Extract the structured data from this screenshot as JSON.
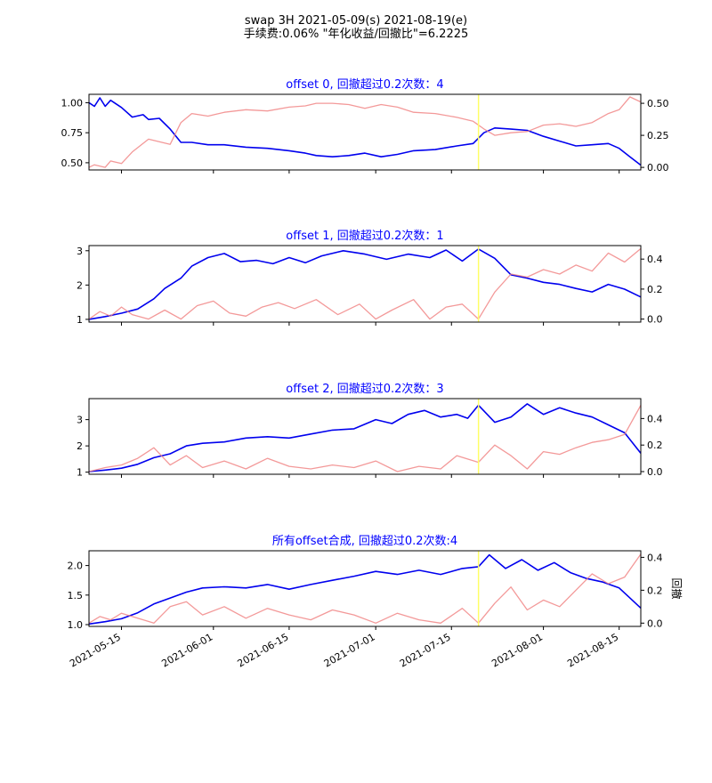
{
  "figure": {
    "title_line1": "swap 3H 2021-05-09(s) 2021-08-19(e)",
    "title_line2": "手续费:0.06% \"年化收益/回撤比\"=6.2225"
  },
  "colors": {
    "equity": "#0000ee",
    "drawdown": "#f08080",
    "marker": "#ffff66",
    "title": "#0000ff"
  },
  "chart_data": [
    {
      "type": "line",
      "title": "offset 0, 回撤超过0.2次数：4",
      "xlim": [
        "2021-05-09",
        "2021-08-19"
      ],
      "ylim": [
        0.44,
        1.07
      ],
      "yticks": [
        0.5,
        0.75,
        1.0
      ],
      "ytick_labels": [
        "0.50",
        "0.75",
        "1.00"
      ],
      "y2lim": [
        -0.02,
        0.57
      ],
      "y2ticks": [
        0.0,
        0.25,
        0.5
      ],
      "y2tick_labels": [
        "0.00",
        "0.25",
        "0.50"
      ],
      "y2label": "",
      "marker_x": "2021-07-20",
      "series": [
        {
          "role": "equity",
          "axis": "left",
          "x": [
            "2021-05-09",
            "2021-05-10",
            "2021-05-11",
            "2021-05-12",
            "2021-05-13",
            "2021-05-15",
            "2021-05-17",
            "2021-05-19",
            "2021-05-20",
            "2021-05-22",
            "2021-05-24",
            "2021-05-26",
            "2021-05-28",
            "2021-05-31",
            "2021-06-03",
            "2021-06-07",
            "2021-06-11",
            "2021-06-15",
            "2021-06-18",
            "2021-06-20",
            "2021-06-23",
            "2021-06-26",
            "2021-06-29",
            "2021-07-02",
            "2021-07-05",
            "2021-07-08",
            "2021-07-12",
            "2021-07-16",
            "2021-07-19",
            "2021-07-21",
            "2021-07-23",
            "2021-07-26",
            "2021-07-29",
            "2021-08-01",
            "2021-08-04",
            "2021-08-07",
            "2021-08-10",
            "2021-08-13",
            "2021-08-15",
            "2021-08-17",
            "2021-08-19"
          ],
          "y": [
            1.0,
            0.97,
            1.04,
            0.97,
            1.02,
            0.96,
            0.88,
            0.9,
            0.86,
            0.87,
            0.78,
            0.67,
            0.67,
            0.65,
            0.65,
            0.63,
            0.62,
            0.6,
            0.58,
            0.56,
            0.55,
            0.56,
            0.58,
            0.55,
            0.57,
            0.6,
            0.61,
            0.64,
            0.66,
            0.75,
            0.79,
            0.78,
            0.77,
            0.72,
            0.68,
            0.64,
            0.65,
            0.66,
            0.62,
            0.55,
            0.48
          ]
        },
        {
          "role": "drawdown",
          "axis": "right",
          "x": [
            "2021-05-09",
            "2021-05-10",
            "2021-05-12",
            "2021-05-13",
            "2021-05-15",
            "2021-05-17",
            "2021-05-20",
            "2021-05-24",
            "2021-05-26",
            "2021-05-28",
            "2021-05-31",
            "2021-06-03",
            "2021-06-07",
            "2021-06-11",
            "2021-06-15",
            "2021-06-18",
            "2021-06-20",
            "2021-06-23",
            "2021-06-26",
            "2021-06-29",
            "2021-07-02",
            "2021-07-05",
            "2021-07-08",
            "2021-07-12",
            "2021-07-16",
            "2021-07-19",
            "2021-07-21",
            "2021-07-23",
            "2021-07-26",
            "2021-07-29",
            "2021-08-01",
            "2021-08-04",
            "2021-08-07",
            "2021-08-10",
            "2021-08-13",
            "2021-08-15",
            "2021-08-17",
            "2021-08-19"
          ],
          "y": [
            0.0,
            0.02,
            0.0,
            0.05,
            0.03,
            0.12,
            0.22,
            0.18,
            0.35,
            0.42,
            0.4,
            0.43,
            0.45,
            0.44,
            0.47,
            0.48,
            0.5,
            0.5,
            0.49,
            0.46,
            0.49,
            0.47,
            0.43,
            0.42,
            0.39,
            0.36,
            0.3,
            0.25,
            0.27,
            0.28,
            0.33,
            0.34,
            0.32,
            0.35,
            0.42,
            0.45,
            0.55,
            0.51
          ]
        }
      ]
    },
    {
      "type": "line",
      "title": "offset 1, 回撤超过0.2次数：1",
      "xlim": [
        "2021-05-09",
        "2021-08-19"
      ],
      "ylim": [
        0.92,
        3.15
      ],
      "yticks": [
        1,
        2,
        3
      ],
      "ytick_labels": [
        "1",
        "2",
        "3"
      ],
      "y2lim": [
        -0.02,
        0.49
      ],
      "y2ticks": [
        0.0,
        0.2,
        0.4
      ],
      "y2tick_labels": [
        "0.0",
        "0.2",
        "0.4"
      ],
      "y2label": "",
      "marker_x": "2021-07-20",
      "series": [
        {
          "role": "equity",
          "axis": "left",
          "x": [
            "2021-05-09",
            "2021-05-12",
            "2021-05-15",
            "2021-05-18",
            "2021-05-21",
            "2021-05-23",
            "2021-05-26",
            "2021-05-28",
            "2021-05-31",
            "2021-06-03",
            "2021-06-06",
            "2021-06-09",
            "2021-06-12",
            "2021-06-15",
            "2021-06-18",
            "2021-06-21",
            "2021-06-25",
            "2021-06-29",
            "2021-07-03",
            "2021-07-07",
            "2021-07-11",
            "2021-07-14",
            "2021-07-17",
            "2021-07-20",
            "2021-07-23",
            "2021-07-26",
            "2021-07-29",
            "2021-08-01",
            "2021-08-04",
            "2021-08-07",
            "2021-08-10",
            "2021-08-13",
            "2021-08-16",
            "2021-08-19"
          ],
          "y": [
            1.0,
            1.08,
            1.18,
            1.3,
            1.6,
            1.9,
            2.2,
            2.55,
            2.8,
            2.92,
            2.68,
            2.72,
            2.62,
            2.8,
            2.65,
            2.85,
            3.0,
            2.9,
            2.75,
            2.9,
            2.8,
            3.02,
            2.7,
            3.05,
            2.78,
            2.3,
            2.2,
            2.08,
            2.02,
            1.9,
            1.8,
            2.02,
            1.88,
            1.65
          ]
        },
        {
          "role": "drawdown",
          "axis": "right",
          "x": [
            "2021-05-09",
            "2021-05-11",
            "2021-05-13",
            "2021-05-15",
            "2021-05-17",
            "2021-05-20",
            "2021-05-23",
            "2021-05-26",
            "2021-05-29",
            "2021-06-01",
            "2021-06-04",
            "2021-06-07",
            "2021-06-10",
            "2021-06-13",
            "2021-06-16",
            "2021-06-20",
            "2021-06-24",
            "2021-06-28",
            "2021-07-01",
            "2021-07-04",
            "2021-07-08",
            "2021-07-11",
            "2021-07-14",
            "2021-07-17",
            "2021-07-20",
            "2021-07-23",
            "2021-07-26",
            "2021-07-29",
            "2021-08-01",
            "2021-08-04",
            "2021-08-07",
            "2021-08-10",
            "2021-08-13",
            "2021-08-16",
            "2021-08-19"
          ],
          "y": [
            0.0,
            0.05,
            0.02,
            0.08,
            0.03,
            0.0,
            0.06,
            0.0,
            0.09,
            0.12,
            0.04,
            0.02,
            0.08,
            0.11,
            0.07,
            0.13,
            0.03,
            0.1,
            0.0,
            0.06,
            0.13,
            0.0,
            0.08,
            0.1,
            0.0,
            0.18,
            0.3,
            0.28,
            0.33,
            0.3,
            0.36,
            0.32,
            0.44,
            0.38,
            0.47
          ]
        }
      ]
    },
    {
      "type": "line",
      "title": "offset 2, 回撤超过0.2次数：3",
      "xlim": [
        "2021-05-09",
        "2021-08-19"
      ],
      "ylim": [
        0.92,
        3.8
      ],
      "yticks": [
        1,
        2,
        3
      ],
      "ytick_labels": [
        "1",
        "2",
        "3"
      ],
      "y2lim": [
        -0.02,
        0.55
      ],
      "y2ticks": [
        0.0,
        0.2,
        0.4
      ],
      "y2tick_labels": [
        "0.0",
        "0.2",
        "0.4"
      ],
      "y2label": "",
      "marker_x": "2021-07-20",
      "series": [
        {
          "role": "equity",
          "axis": "left",
          "x": [
            "2021-05-09",
            "2021-05-12",
            "2021-05-15",
            "2021-05-18",
            "2021-05-21",
            "2021-05-24",
            "2021-05-27",
            "2021-05-30",
            "2021-06-03",
            "2021-06-07",
            "2021-06-11",
            "2021-06-15",
            "2021-06-19",
            "2021-06-23",
            "2021-06-27",
            "2021-07-01",
            "2021-07-04",
            "2021-07-07",
            "2021-07-10",
            "2021-07-13",
            "2021-07-16",
            "2021-07-18",
            "2021-07-20",
            "2021-07-23",
            "2021-07-26",
            "2021-07-29",
            "2021-08-01",
            "2021-08-04",
            "2021-08-07",
            "2021-08-10",
            "2021-08-13",
            "2021-08-16",
            "2021-08-19"
          ],
          "y": [
            1.02,
            1.08,
            1.15,
            1.3,
            1.55,
            1.7,
            2.0,
            2.1,
            2.15,
            2.3,
            2.35,
            2.3,
            2.45,
            2.6,
            2.65,
            3.0,
            2.85,
            3.2,
            3.35,
            3.1,
            3.2,
            3.05,
            3.55,
            2.9,
            3.1,
            3.6,
            3.2,
            3.45,
            3.25,
            3.1,
            2.8,
            2.5,
            1.72
          ]
        },
        {
          "role": "drawdown",
          "axis": "right",
          "x": [
            "2021-05-09",
            "2021-05-12",
            "2021-05-15",
            "2021-05-18",
            "2021-05-21",
            "2021-05-24",
            "2021-05-27",
            "2021-05-30",
            "2021-06-03",
            "2021-06-07",
            "2021-06-11",
            "2021-06-15",
            "2021-06-19",
            "2021-06-23",
            "2021-06-27",
            "2021-07-01",
            "2021-07-05",
            "2021-07-09",
            "2021-07-13",
            "2021-07-16",
            "2021-07-20",
            "2021-07-23",
            "2021-07-26",
            "2021-07-29",
            "2021-08-01",
            "2021-08-04",
            "2021-08-07",
            "2021-08-10",
            "2021-08-13",
            "2021-08-16",
            "2021-08-19"
          ],
          "y": [
            0.0,
            0.03,
            0.05,
            0.1,
            0.18,
            0.05,
            0.12,
            0.03,
            0.08,
            0.02,
            0.1,
            0.04,
            0.02,
            0.05,
            0.03,
            0.08,
            0.0,
            0.04,
            0.02,
            0.12,
            0.07,
            0.2,
            0.12,
            0.02,
            0.15,
            0.13,
            0.18,
            0.22,
            0.24,
            0.28,
            0.5
          ]
        }
      ]
    },
    {
      "type": "line",
      "title": "所有offset合成, 回撤超过0.2次数:4",
      "xlim": [
        "2021-05-09",
        "2021-08-19"
      ],
      "ylim": [
        0.97,
        2.25
      ],
      "yticks": [
        1.0,
        1.5,
        2.0
      ],
      "ytick_labels": [
        "1.0",
        "1.5",
        "2.0"
      ],
      "y2lim": [
        -0.02,
        0.44
      ],
      "y2ticks": [
        0.0,
        0.2,
        0.4
      ],
      "y2tick_labels": [
        "0.0",
        "0.2",
        "0.4"
      ],
      "y2label": "回撤",
      "marker_x": "2021-07-20",
      "xticks": [
        "2021-05-15",
        "2021-06-01",
        "2021-06-15",
        "2021-07-01",
        "2021-07-15",
        "2021-08-01",
        "2021-08-15"
      ],
      "xtick_labels": [
        "2021-05-15",
        "2021-06-01",
        "2021-06-15",
        "2021-07-01",
        "2021-07-15",
        "2021-08-01",
        "2021-08-15"
      ],
      "series": [
        {
          "role": "equity",
          "axis": "left",
          "x": [
            "2021-05-09",
            "2021-05-12",
            "2021-05-15",
            "2021-05-18",
            "2021-05-21",
            "2021-05-24",
            "2021-05-27",
            "2021-05-30",
            "2021-06-03",
            "2021-06-07",
            "2021-06-11",
            "2021-06-15",
            "2021-06-19",
            "2021-06-23",
            "2021-06-27",
            "2021-07-01",
            "2021-07-05",
            "2021-07-09",
            "2021-07-13",
            "2021-07-17",
            "2021-07-20",
            "2021-07-22",
            "2021-07-25",
            "2021-07-28",
            "2021-07-31",
            "2021-08-03",
            "2021-08-06",
            "2021-08-09",
            "2021-08-12",
            "2021-08-15",
            "2021-08-17",
            "2021-08-19"
          ],
          "y": [
            1.01,
            1.05,
            1.1,
            1.2,
            1.35,
            1.45,
            1.55,
            1.62,
            1.64,
            1.62,
            1.68,
            1.6,
            1.68,
            1.75,
            1.82,
            1.9,
            1.85,
            1.92,
            1.85,
            1.95,
            1.98,
            2.18,
            1.95,
            2.1,
            1.92,
            2.05,
            1.88,
            1.78,
            1.72,
            1.62,
            1.45,
            1.28
          ]
        },
        {
          "role": "drawdown",
          "axis": "right",
          "x": [
            "2021-05-09",
            "2021-05-11",
            "2021-05-13",
            "2021-05-15",
            "2021-05-18",
            "2021-05-21",
            "2021-05-24",
            "2021-05-27",
            "2021-05-30",
            "2021-06-03",
            "2021-06-07",
            "2021-06-11",
            "2021-06-15",
            "2021-06-19",
            "2021-06-23",
            "2021-06-27",
            "2021-07-01",
            "2021-07-05",
            "2021-07-09",
            "2021-07-13",
            "2021-07-17",
            "2021-07-20",
            "2021-07-23",
            "2021-07-26",
            "2021-07-29",
            "2021-08-01",
            "2021-08-04",
            "2021-08-07",
            "2021-08-10",
            "2021-08-13",
            "2021-08-16",
            "2021-08-19"
          ],
          "y": [
            0.0,
            0.04,
            0.02,
            0.06,
            0.03,
            0.0,
            0.1,
            0.13,
            0.05,
            0.1,
            0.03,
            0.09,
            0.05,
            0.02,
            0.08,
            0.05,
            0.0,
            0.06,
            0.02,
            0.0,
            0.09,
            0.0,
            0.12,
            0.22,
            0.08,
            0.14,
            0.1,
            0.2,
            0.3,
            0.24,
            0.28,
            0.42
          ]
        }
      ]
    }
  ]
}
